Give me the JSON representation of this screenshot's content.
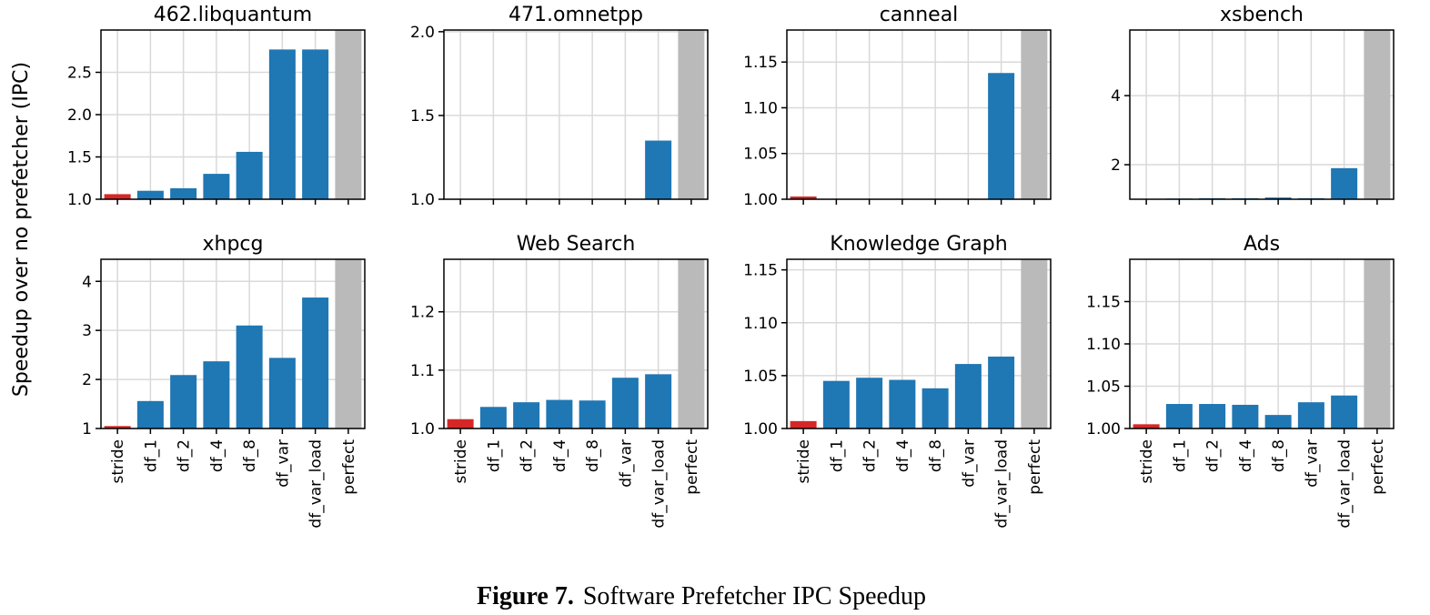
{
  "figure": {
    "ylabel": "Speedup over no prefetcher (IPC)",
    "caption_label": "Figure 7.",
    "caption_text": "Software Prefetcher IPC Speedup",
    "colors": {
      "stride": "#d62728",
      "default": "#1f77b4",
      "perfect": "#bababa"
    }
  },
  "chart_data": [
    {
      "type": "bar",
      "title": "462.libquantum",
      "categories": [
        "stride",
        "df_1",
        "df_2",
        "df_4",
        "df_8",
        "df_var",
        "df_var_load",
        "perfect"
      ],
      "values": [
        1.06,
        1.1,
        1.13,
        1.3,
        1.56,
        2.77,
        2.77,
        null
      ],
      "ylim": [
        1.0,
        3.0
      ],
      "yticks": [
        1.0,
        1.5,
        2.0,
        2.5
      ],
      "ytick_labels": [
        "1.0",
        "1.5",
        "2.0",
        "2.5"
      ],
      "show_xticklabels": false
    },
    {
      "type": "bar",
      "title": "471.omnetpp",
      "categories": [
        "stride",
        "df_1",
        "df_2",
        "df_4",
        "df_8",
        "df_var",
        "df_var_load",
        "perfect"
      ],
      "values": [
        1.0,
        1.0,
        1.0,
        1.0,
        1.0,
        1.0,
        1.35,
        null
      ],
      "ylim": [
        1.0,
        2.01
      ],
      "yticks": [
        1.0,
        1.5,
        2.0
      ],
      "ytick_labels": [
        "1.0",
        "1.5",
        "2.0"
      ],
      "show_xticklabels": false
    },
    {
      "type": "bar",
      "title": "canneal",
      "categories": [
        "stride",
        "df_1",
        "df_2",
        "df_4",
        "df_8",
        "df_var",
        "df_var_load",
        "perfect"
      ],
      "values": [
        1.003,
        1.0,
        1.0,
        1.0,
        1.0,
        1.0,
        1.138,
        null
      ],
      "ylim": [
        1.0,
        1.185
      ],
      "yticks": [
        1.0,
        1.05,
        1.1,
        1.15
      ],
      "ytick_labels": [
        "1.00",
        "1.05",
        "1.10",
        "1.15"
      ],
      "show_xticklabels": false
    },
    {
      "type": "bar",
      "title": "xsbench",
      "categories": [
        "stride",
        "df_1",
        "df_2",
        "df_4",
        "df_8",
        "df_var",
        "df_var_load",
        "perfect"
      ],
      "values": [
        1.0,
        1.02,
        1.03,
        1.03,
        1.05,
        1.03,
        1.9,
        null
      ],
      "ylim": [
        1.0,
        5.9
      ],
      "yticks": [
        2,
        4
      ],
      "ytick_labels": [
        "2",
        "4"
      ],
      "show_xticklabels": false
    },
    {
      "type": "bar",
      "title": "xhpcg",
      "categories": [
        "stride",
        "df_1",
        "df_2",
        "df_4",
        "df_8",
        "df_var",
        "df_var_load",
        "perfect"
      ],
      "values": [
        1.05,
        1.56,
        2.09,
        2.37,
        3.1,
        2.44,
        3.67,
        null
      ],
      "ylim": [
        1.0,
        4.45
      ],
      "yticks": [
        1,
        2,
        3,
        4
      ],
      "ytick_labels": [
        "1",
        "2",
        "3",
        "4"
      ],
      "show_xticklabels": true
    },
    {
      "type": "bar",
      "title": "Web Search",
      "categories": [
        "stride",
        "df_1",
        "df_2",
        "df_4",
        "df_8",
        "df_var",
        "df_var_load",
        "perfect"
      ],
      "values": [
        1.016,
        1.037,
        1.045,
        1.049,
        1.048,
        1.087,
        1.093,
        null
      ],
      "ylim": [
        1.0,
        1.29
      ],
      "yticks": [
        1.0,
        1.1,
        1.2
      ],
      "ytick_labels": [
        "1.0",
        "1.1",
        "1.2"
      ],
      "show_xticklabels": true
    },
    {
      "type": "bar",
      "title": "Knowledge Graph",
      "categories": [
        "stride",
        "df_1",
        "df_2",
        "df_4",
        "df_8",
        "df_var",
        "df_var_load",
        "perfect"
      ],
      "values": [
        1.007,
        1.045,
        1.048,
        1.046,
        1.038,
        1.061,
        1.068,
        null
      ],
      "ylim": [
        1.0,
        1.16
      ],
      "yticks": [
        1.0,
        1.05,
        1.1,
        1.15
      ],
      "ytick_labels": [
        "1.00",
        "1.05",
        "1.10",
        "1.15"
      ],
      "show_xticklabels": true
    },
    {
      "type": "bar",
      "title": "Ads",
      "categories": [
        "stride",
        "df_1",
        "df_2",
        "df_4",
        "df_8",
        "df_var",
        "df_var_load",
        "perfect"
      ],
      "values": [
        1.005,
        1.029,
        1.029,
        1.028,
        1.016,
        1.031,
        1.039,
        null
      ],
      "ylim": [
        1.0,
        1.2
      ],
      "yticks": [
        1.0,
        1.05,
        1.1,
        1.15
      ],
      "ytick_labels": [
        "1.00",
        "1.05",
        "1.10",
        "1.15"
      ],
      "show_xticklabels": true
    }
  ]
}
